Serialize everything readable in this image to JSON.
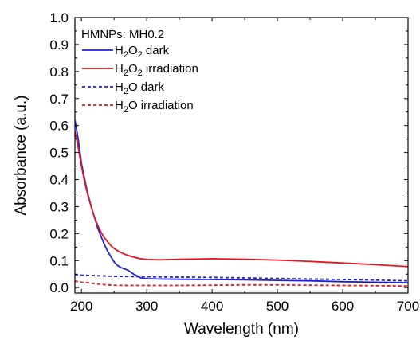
{
  "chart_data": {
    "type": "line",
    "title": "",
    "xlabel": "Wavelength (nm)",
    "ylabel": "Absorbance (a.u.)",
    "xlim": [
      190,
      700
    ],
    "ylim": [
      -0.02,
      1.0
    ],
    "xticks": [
      200,
      300,
      400,
      500,
      600,
      700
    ],
    "xtick_labels": [
      "200",
      "300",
      "400",
      "500",
      "600",
      "700"
    ],
    "yticks": [
      0.0,
      0.1,
      0.2,
      0.3,
      0.4,
      0.5,
      0.6,
      0.7,
      0.8,
      0.9,
      1.0
    ],
    "ytick_labels": [
      "0.0",
      "0.1",
      "0.2",
      "0.3",
      "0.4",
      "0.5",
      "0.6",
      "0.7",
      "0.8",
      "0.9",
      "1.0"
    ],
    "grid": false,
    "legend_position": "top-left",
    "legend_title": "HMNPs: MH0.2",
    "series": [
      {
        "name": "H2O2 dark",
        "color": "#1f1fdc",
        "style": "solid",
        "x": [
          190,
          195,
          200,
          205,
          210,
          215,
          220,
          225,
          230,
          235,
          240,
          245,
          250,
          255,
          260,
          265,
          270,
          275,
          280,
          285,
          290,
          295,
          300,
          320,
          350,
          400,
          450,
          500,
          550,
          600,
          650,
          700
        ],
        "y": [
          0.62,
          0.55,
          0.46,
          0.4,
          0.345,
          0.3,
          0.26,
          0.22,
          0.19,
          0.16,
          0.135,
          0.115,
          0.095,
          0.082,
          0.075,
          0.07,
          0.066,
          0.058,
          0.05,
          0.044,
          0.037,
          0.034,
          0.033,
          0.032,
          0.031,
          0.03,
          0.029,
          0.027,
          0.025,
          0.022,
          0.02,
          0.018
        ]
      },
      {
        "name": "H2O2 irradiation",
        "color": "#e8141e",
        "style": "solid",
        "x": [
          190,
          195,
          200,
          205,
          210,
          215,
          220,
          225,
          230,
          235,
          240,
          245,
          250,
          255,
          260,
          270,
          280,
          290,
          300,
          320,
          350,
          400,
          450,
          500,
          550,
          600,
          650,
          700
        ],
        "y": [
          0.58,
          0.52,
          0.45,
          0.39,
          0.34,
          0.3,
          0.26,
          0.23,
          0.205,
          0.185,
          0.17,
          0.155,
          0.145,
          0.137,
          0.13,
          0.12,
          0.113,
          0.107,
          0.104,
          0.103,
          0.105,
          0.107,
          0.105,
          0.102,
          0.097,
          0.091,
          0.085,
          0.078
        ]
      },
      {
        "name": "H2O dark",
        "color": "#1f1fdc",
        "style": "dashed",
        "x": [
          190,
          200,
          225,
          250,
          275,
          300,
          350,
          400,
          450,
          500,
          550,
          600,
          650,
          700
        ],
        "y": [
          0.048,
          0.046,
          0.044,
          0.042,
          0.041,
          0.04,
          0.039,
          0.038,
          0.036,
          0.034,
          0.032,
          0.03,
          0.028,
          0.025
        ]
      },
      {
        "name": "H2O irradiation",
        "color": "#e8141e",
        "style": "dashed",
        "x": [
          190,
          195,
          200,
          210,
          220,
          230,
          240,
          250,
          270,
          300,
          350,
          400,
          450,
          500,
          550,
          600,
          650,
          700
        ],
        "y": [
          0.024,
          0.022,
          0.02,
          0.018,
          0.015,
          0.012,
          0.01,
          0.009,
          0.008,
          0.008,
          0.008,
          0.009,
          0.01,
          0.01,
          0.009,
          0.008,
          0.007,
          0.006
        ]
      }
    ]
  },
  "legend": [
    {
      "main": "H",
      "sub1": "2",
      "mid": "O",
      "sub2": "2",
      "rest": " dark"
    },
    {
      "main": "H",
      "sub1": "2",
      "mid": "O",
      "sub2": "2",
      "rest": " irradiation"
    },
    {
      "main": "H",
      "sub1": "2",
      "mid": "O",
      "sub2": "",
      "rest": " dark"
    },
    {
      "main": "H",
      "sub1": "2",
      "mid": "O",
      "sub2": "",
      "rest": " irradiation"
    }
  ]
}
